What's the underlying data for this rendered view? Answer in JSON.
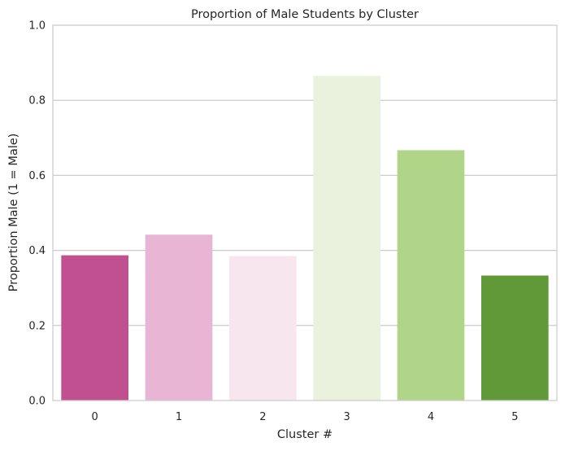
{
  "chart_data": {
    "type": "bar",
    "title": "Proportion of Male Students by Cluster",
    "xlabel": "Cluster #",
    "ylabel": "Proportion Male (1 = Male)",
    "categories": [
      "0",
      "1",
      "2",
      "3",
      "4",
      "5"
    ],
    "values": [
      0.387,
      0.442,
      0.385,
      0.865,
      0.667,
      0.333
    ],
    "colors": [
      "#c0508f",
      "#e8b5d4",
      "#f8e6ef",
      "#eaf2dd",
      "#b0d589",
      "#629938"
    ],
    "ylim": [
      0,
      1.0
    ],
    "yticks": [
      "0.0",
      "0.2",
      "0.4",
      "0.6",
      "0.8",
      "1.0"
    ],
    "grid": "horizontal",
    "legend": "none"
  }
}
